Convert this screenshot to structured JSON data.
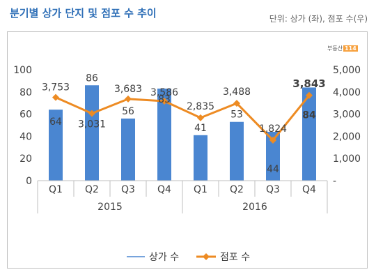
{
  "title": "분기별 상가 단지 및 점포 수 추이",
  "unit_label": "단위: 상가 (좌), 점포 수(우)",
  "logo": {
    "text": "부동산",
    "num": "114"
  },
  "chart_data": {
    "type": "bar",
    "categories": [
      "Q1",
      "Q2",
      "Q3",
      "Q4",
      "Q1",
      "Q2",
      "Q3",
      "Q4"
    ],
    "groups": [
      {
        "label": "2015",
        "categories": [
          "Q1",
          "Q2",
          "Q3",
          "Q4"
        ]
      },
      {
        "label": "2016",
        "categories": [
          "Q1",
          "Q2",
          "Q3",
          "Q4"
        ]
      }
    ],
    "series": [
      {
        "name": "상가 수",
        "type": "bar",
        "axis": "left",
        "color": "#4a86d1",
        "values": [
          64,
          86,
          56,
          83,
          41,
          53,
          44,
          84
        ],
        "labels": [
          "64",
          "86",
          "56",
          "83",
          "41",
          "53",
          "44",
          "84"
        ]
      },
      {
        "name": "점포 수",
        "type": "line",
        "axis": "right",
        "color": "#ed8b23",
        "values": [
          3753,
          3031,
          3683,
          3586,
          2835,
          3488,
          1824,
          3843
        ],
        "labels": [
          "3,753",
          "3,031",
          "3,683",
          "3,586",
          "2,835",
          "3,488",
          "1,824",
          "3,843"
        ]
      }
    ],
    "y_left": {
      "min": 0,
      "max": 100,
      "ticks": [
        0,
        20,
        40,
        60,
        80,
        100
      ],
      "tick_labels": [
        "0",
        "20",
        "40",
        "60",
        "80",
        "100"
      ]
    },
    "y_right": {
      "min": 0,
      "max": 5000,
      "ticks": [
        0,
        1000,
        2000,
        3000,
        4000,
        5000
      ],
      "tick_labels": [
        "-",
        "1,000",
        "2,000",
        "3,000",
        "4,000",
        "5,000"
      ]
    },
    "grid": false,
    "legend_position": "bottom",
    "emphasized_last_point": true
  }
}
